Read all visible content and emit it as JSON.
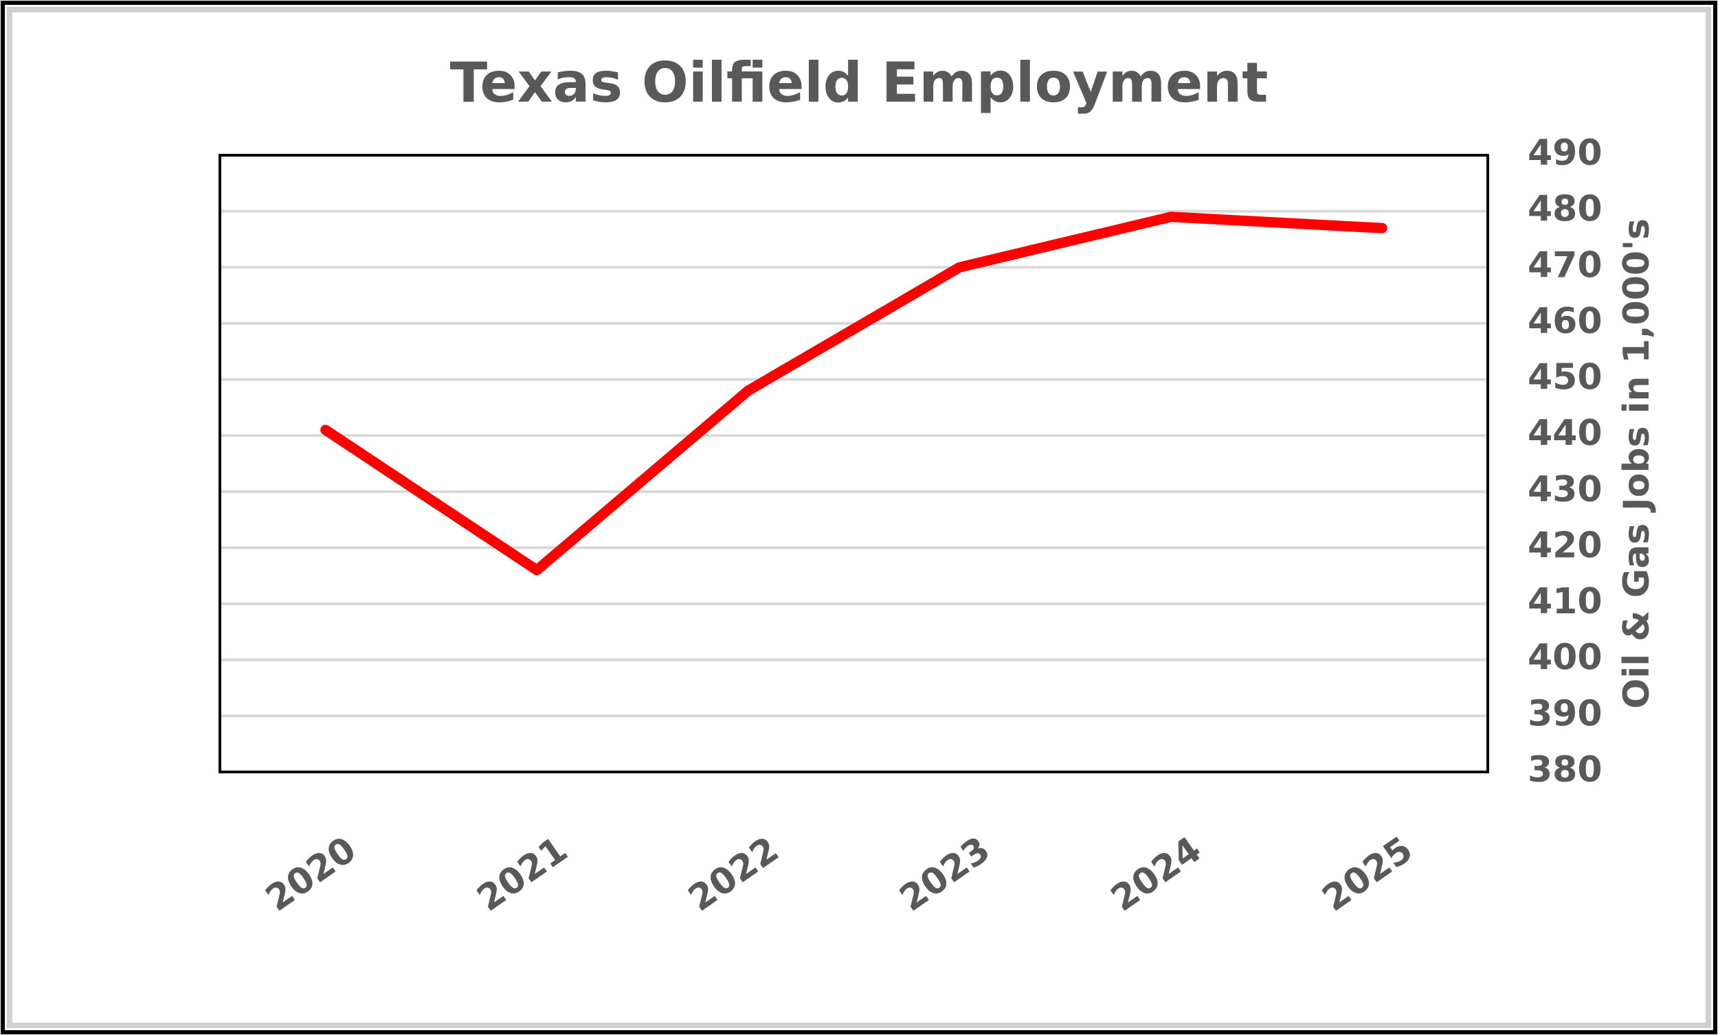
{
  "chart_data": {
    "type": "line",
    "title": "Texas Oilfield Employment",
    "categories": [
      "2020",
      "2021",
      "2022",
      "2023",
      "2024",
      "2025"
    ],
    "values": [
      441,
      416,
      448,
      470,
      479,
      477
    ],
    "color": "#ff0000",
    "y_label": "Oil & Gas Jobs in 1,000's",
    "ylim": [
      380,
      490
    ],
    "yticks": [
      380,
      390,
      400,
      410,
      420,
      430,
      440,
      450,
      460,
      470,
      480,
      490
    ],
    "yaxis_side": "right",
    "grid": true
  }
}
